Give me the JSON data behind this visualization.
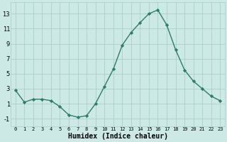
{
  "x": [
    0,
    1,
    2,
    3,
    4,
    5,
    6,
    7,
    8,
    9,
    10,
    11,
    12,
    13,
    14,
    15,
    16,
    17,
    18,
    19,
    20,
    21,
    22,
    23
  ],
  "y": [
    2.8,
    1.2,
    1.6,
    1.6,
    1.4,
    0.6,
    -0.5,
    -0.8,
    -0.6,
    1.0,
    3.3,
    5.6,
    8.8,
    10.5,
    11.8,
    13.0,
    13.5,
    11.5,
    8.2,
    5.5,
    4.0,
    3.0,
    2.0,
    1.4
  ],
  "xlabel": "Humidex (Indice chaleur)",
  "xlim": [
    -0.5,
    23.5
  ],
  "ylim": [
    -2,
    14.5
  ],
  "yticks": [
    -1,
    1,
    3,
    5,
    7,
    9,
    11,
    13
  ],
  "xticks": [
    0,
    1,
    2,
    3,
    4,
    5,
    6,
    7,
    8,
    9,
    10,
    11,
    12,
    13,
    14,
    15,
    16,
    17,
    18,
    19,
    20,
    21,
    22,
    23
  ],
  "line_color": "#2d7d6d",
  "bg_color": "#cce9e5",
  "grid_color": "#aacfcb",
  "marker": "D",
  "marker_size": 2.2,
  "line_width": 1.0,
  "tick_fontsize_x": 5.0,
  "tick_fontsize_y": 6.0,
  "xlabel_fontsize": 7.0
}
